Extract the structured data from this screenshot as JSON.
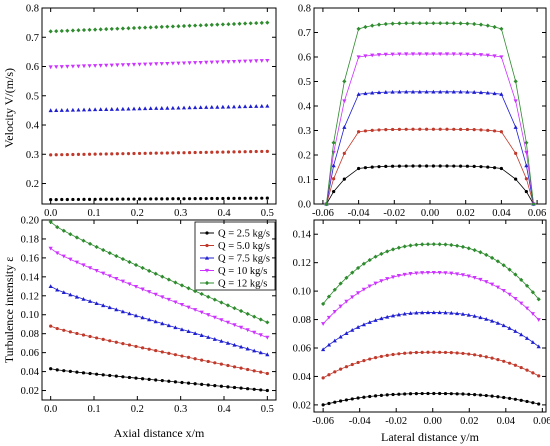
{
  "legend": {
    "entries": [
      {
        "label": "Q = 2.5 kg/s",
        "color": "#000000",
        "marker": "circle"
      },
      {
        "label": "Q = 5.0 kg/s",
        "color": "#c0392b",
        "marker": "circle"
      },
      {
        "label": "Q = 7.5 kg/s",
        "color": "#1f1fd1",
        "marker": "triangle"
      },
      {
        "label": "Q = 10  kg/s",
        "color": "#cc33ff",
        "marker": "triangle-down"
      },
      {
        "label": "Q = 12  kg/s",
        "color": "#2e8b2e",
        "marker": "diamond"
      }
    ],
    "placement": "top-right of bottom-left panel"
  },
  "chart_data": [
    {
      "id": "tl",
      "type": "scatter",
      "ylabel": "Velocity V/(m/s)",
      "xlabel": "",
      "xlim": [
        -0.02,
        0.52
      ],
      "ylim": [
        0.13,
        0.8
      ],
      "xticks": [
        0.0,
        0.1,
        0.2,
        0.3,
        0.4,
        0.5
      ],
      "yticks": [
        0.2,
        0.3,
        0.4,
        0.5,
        0.6,
        0.7,
        0.8
      ],
      "xtick_labels": [
        "0.0",
        "0.1",
        "0.2",
        "0.3",
        "0.4",
        "0.5"
      ],
      "ytick_labels": [
        "0.2",
        "0.3",
        "0.4",
        "0.5",
        "0.6",
        "0.7",
        "0.8"
      ],
      "series": [
        {
          "x_range": [
            0.0,
            0.5
          ],
          "n": 40,
          "y_start": 0.145,
          "y_end": 0.15,
          "color": "#000000",
          "marker": "circle",
          "line": false
        },
        {
          "x_range": [
            0.0,
            0.5
          ],
          "n": 40,
          "y_start": 0.298,
          "y_end": 0.31,
          "color": "#c0392b",
          "marker": "circle",
          "line": false
        },
        {
          "x_range": [
            0.0,
            0.5
          ],
          "n": 40,
          "y_start": 0.45,
          "y_end": 0.465,
          "color": "#1f1fd1",
          "marker": "triangle",
          "line": false
        },
        {
          "x_range": [
            0.0,
            0.5
          ],
          "n": 40,
          "y_start": 0.598,
          "y_end": 0.62,
          "color": "#cc33ff",
          "marker": "triangle-down",
          "line": false
        },
        {
          "x_range": [
            0.0,
            0.5
          ],
          "n": 40,
          "y_start": 0.72,
          "y_end": 0.75,
          "color": "#2e8b2e",
          "marker": "diamond",
          "line": false
        }
      ]
    },
    {
      "id": "tr",
      "type": "line",
      "ylabel": "",
      "xlabel": "",
      "xlim": [
        -0.065,
        0.065
      ],
      "ylim": [
        0.0,
        0.8
      ],
      "xticks": [
        -0.06,
        -0.04,
        -0.02,
        0.0,
        0.02,
        0.04,
        0.06
      ],
      "yticks": [
        0.0,
        0.1,
        0.2,
        0.3,
        0.4,
        0.5,
        0.6,
        0.7,
        0.8
      ],
      "xtick_labels": [
        "-0.06",
        "-0.04",
        "-0.02",
        "0.00",
        "0.02",
        "0.04",
        "0.06"
      ],
      "ytick_labels": [
        "0.0",
        "0.1",
        "0.2",
        "0.3",
        "0.4",
        "0.5",
        "0.6",
        "0.7",
        "0.8"
      ],
      "series": [
        {
          "wall": 0.058,
          "edge": 0.04,
          "center": 0.155,
          "edge_value": 0.145,
          "color": "#000000",
          "marker": "circle",
          "line": true
        },
        {
          "wall": 0.058,
          "edge": 0.04,
          "center": 0.305,
          "edge_value": 0.295,
          "color": "#c0392b",
          "marker": "circle",
          "line": true
        },
        {
          "wall": 0.058,
          "edge": 0.04,
          "center": 0.458,
          "edge_value": 0.448,
          "color": "#1f1fd1",
          "marker": "triangle",
          "line": true
        },
        {
          "wall": 0.058,
          "edge": 0.04,
          "center": 0.612,
          "edge_value": 0.6,
          "color": "#cc33ff",
          "marker": "triangle-down",
          "line": true
        },
        {
          "wall": 0.058,
          "edge": 0.04,
          "center": 0.738,
          "edge_value": 0.715,
          "color": "#2e8b2e",
          "marker": "diamond",
          "line": true
        }
      ]
    },
    {
      "id": "bl",
      "type": "line",
      "ylabel": "Turbulence intensity ε",
      "xlabel": "Axial distance x/m",
      "xlim": [
        -0.02,
        0.52
      ],
      "ylim": [
        0.01,
        0.2
      ],
      "xticks": [
        0.0,
        0.1,
        0.2,
        0.3,
        0.4,
        0.5
      ],
      "yticks": [
        0.02,
        0.04,
        0.06,
        0.08,
        0.1,
        0.12,
        0.14,
        0.16,
        0.18,
        0.2
      ],
      "xtick_labels": [
        "0.0",
        "0.1",
        "0.2",
        "0.3",
        "0.4",
        "0.5"
      ],
      "ytick_labels": [
        "0.02",
        "0.04",
        "0.06",
        "0.08",
        "0.10",
        "0.12",
        "0.14",
        "0.16",
        "0.18",
        "0.20"
      ],
      "series": [
        {
          "x_range": [
            0.0,
            0.5
          ],
          "n": 34,
          "y_start": 0.043,
          "y_end": 0.02,
          "color": "#000000",
          "marker": "circle",
          "line": true
        },
        {
          "x_range": [
            0.0,
            0.5
          ],
          "n": 34,
          "y_start": 0.088,
          "y_end": 0.038,
          "color": "#c0392b",
          "marker": "circle",
          "line": true
        },
        {
          "x_range": [
            0.0,
            0.5
          ],
          "n": 34,
          "y_start": 0.13,
          "y_end": 0.058,
          "color": "#1f1fd1",
          "marker": "triangle",
          "line": true
        },
        {
          "x_range": [
            0.0,
            0.5
          ],
          "n": 34,
          "y_start": 0.17,
          "y_end": 0.076,
          "color": "#cc33ff",
          "marker": "triangle-down",
          "line": true
        },
        {
          "x_range": [
            0.0,
            0.5
          ],
          "n": 34,
          "y_start": 0.198,
          "y_end": 0.092,
          "color": "#2e8b2e",
          "marker": "diamond",
          "line": true
        }
      ]
    },
    {
      "id": "br",
      "type": "line",
      "ylabel": "",
      "xlabel": "Lateral distance y/m",
      "xlim": [
        -0.065,
        0.062
      ],
      "ylim": [
        0.015,
        0.15
      ],
      "xticks": [
        -0.06,
        -0.04,
        -0.02,
        0.0,
        0.02,
        0.04,
        0.06
      ],
      "yticks": [
        0.02,
        0.04,
        0.06,
        0.08,
        0.1,
        0.12,
        0.14
      ],
      "xtick_labels": [
        "-0.06",
        "-0.04",
        "-0.02",
        "0.00",
        "0.02",
        "0.04",
        "0.06"
      ],
      "ytick_labels": [
        "0.02",
        "0.04",
        "0.06",
        "0.08",
        "0.10",
        "0.12",
        "0.14"
      ],
      "series": [
        {
          "y_range": [
            -0.06,
            0.058
          ],
          "n": 38,
          "center": 0.028,
          "wall": 0.02,
          "color": "#000000",
          "marker": "circle",
          "line": true
        },
        {
          "y_range": [
            -0.06,
            0.058
          ],
          "n": 38,
          "center": 0.057,
          "wall": 0.039,
          "color": "#c0392b",
          "marker": "circle",
          "line": true
        },
        {
          "y_range": [
            -0.06,
            0.058
          ],
          "n": 38,
          "center": 0.085,
          "wall": 0.059,
          "color": "#1f1fd1",
          "marker": "triangle",
          "line": true
        },
        {
          "y_range": [
            -0.06,
            0.058
          ],
          "n": 38,
          "center": 0.113,
          "wall": 0.077,
          "color": "#cc33ff",
          "marker": "triangle-down",
          "line": true
        },
        {
          "y_range": [
            -0.06,
            0.058
          ],
          "n": 38,
          "center": 0.133,
          "wall": 0.091,
          "color": "#2e8b2e",
          "marker": "diamond",
          "line": true
        }
      ]
    }
  ]
}
